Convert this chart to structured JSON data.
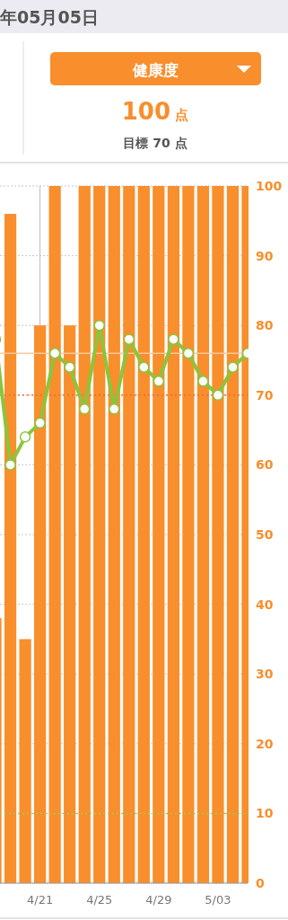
{
  "chart_data": {
    "type": "bar",
    "annotations": [
      "年05月05日",
      "健康度",
      "100 点",
      "目標 70 点"
    ],
    "categories": [
      null,
      null,
      null,
      "4/21",
      null,
      null,
      null,
      "4/25",
      null,
      null,
      null,
      "4/29",
      null,
      null,
      null,
      "5/03",
      null,
      null
    ],
    "series": [
      {
        "color": "#f88e2c",
        "values": [
          38,
          96,
          35,
          80,
          100,
          80,
          100,
          100,
          100,
          100,
          100,
          100,
          100,
          100,
          100,
          100,
          100,
          100
        ]
      },
      {
        "type": "line",
        "color": "#8cc43c",
        "marker": "circle",
        "values": [
          78,
          60,
          64,
          66,
          76,
          74,
          68,
          80,
          68,
          78,
          74,
          72,
          78,
          76,
          72,
          70,
          74,
          76
        ]
      }
    ],
    "ylim": [
      0,
      100
    ],
    "yticks": [
      0,
      10,
      20,
      30,
      40,
      50,
      60,
      70,
      80,
      90,
      100
    ],
    "grid": "y",
    "ref_lines": [
      {
        "axis": "y",
        "value": 70,
        "color": "#f26b3a",
        "line_style": "dotted"
      },
      {
        "axis": "y",
        "value": 10,
        "color": "#9ccc5a",
        "line_style": "dotted"
      },
      {
        "axis": "y",
        "value": 76,
        "color": "#f9c89a",
        "line_style": "solid"
      },
      {
        "axis": "x",
        "value": "4/21",
        "color": "#bbbbbb",
        "line_style": "solid"
      }
    ]
  }
}
